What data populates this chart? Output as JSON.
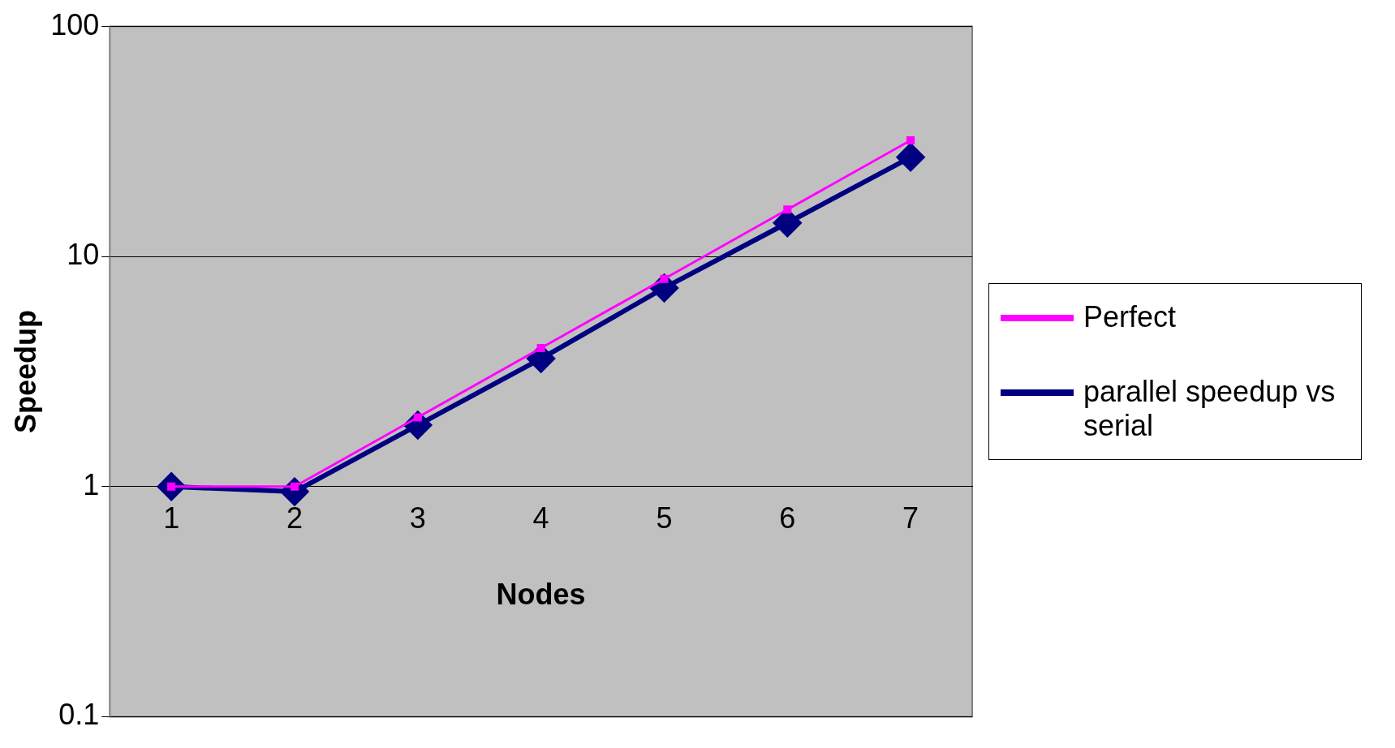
{
  "chart_data": {
    "type": "line",
    "xlabel": "Nodes",
    "ylabel": "Speedup",
    "categories": [
      "1",
      "2",
      "3",
      "4",
      "5",
      "6",
      "7"
    ],
    "series": [
      {
        "name": "Perfect",
        "color": "#ff00ff",
        "marker": "square",
        "values": [
          1,
          1,
          2,
          4,
          8,
          16,
          32
        ]
      },
      {
        "name": "parallel speedup vs serial",
        "color": "#000080",
        "marker": "diamond",
        "values": [
          1,
          0.95,
          1.85,
          3.6,
          7.3,
          14,
          27
        ]
      }
    ],
    "log": "y",
    "ylim": [
      0.1,
      100
    ],
    "yticks": [
      0.1,
      1,
      10,
      100
    ],
    "grid": "y",
    "legend": "right"
  }
}
